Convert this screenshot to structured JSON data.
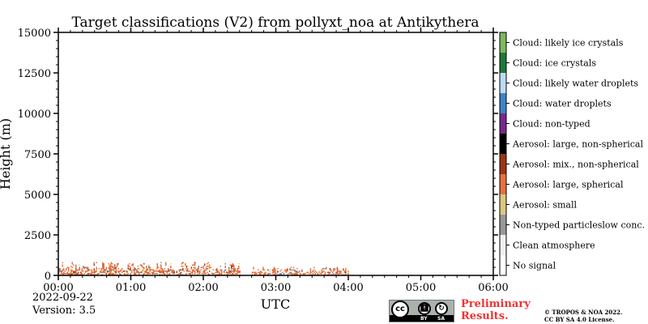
{
  "chart_data": {
    "type": "heatmap",
    "title": "Target classifications (V2) from pollyxt_noa at Antikythera",
    "xlabel": "UTC",
    "ylabel": "Height (m)",
    "x_range": [
      "00:00",
      "06:00"
    ],
    "ylim": [
      0,
      15000
    ],
    "x_ticks": [
      "00:00",
      "01:00",
      "02:00",
      "03:00",
      "04:00",
      "05:00",
      "06:00"
    ],
    "y_ticks": [
      0,
      2500,
      5000,
      7500,
      10000,
      12500,
      15000
    ],
    "grid": false,
    "colorbar": [
      {
        "label": "No signal",
        "color": "#ffffff"
      },
      {
        "label": "Clean atmosphere",
        "color": "#f0f0f0"
      },
      {
        "label": "Non-typed particleslow conc.",
        "color": "#999999"
      },
      {
        "label": "Aerosol: small",
        "color": "#ddc981"
      },
      {
        "label": "Aerosol: large, spherical",
        "color": "#e8713d"
      },
      {
        "label": "Aerosol: mix., non-spherical",
        "color": "#9c3515"
      },
      {
        "label": "Aerosol: large, non-spherical",
        "color": "#000000"
      },
      {
        "label": "Cloud: non-typed",
        "color": "#7a2a8a"
      },
      {
        "label": "Cloud: water droplets",
        "color": "#3f86c8"
      },
      {
        "label": "Cloud: likely water droplets",
        "color": "#bfdcf5"
      },
      {
        "label": "Cloud: ice crystals",
        "color": "#1e7a3a"
      },
      {
        "label": "Cloud: likely ice crystals",
        "color": "#7fb95f"
      }
    ],
    "observations": [
      {
        "start": "00:00",
        "end": "02:30",
        "layer_top_m": 900,
        "class": "Aerosol: large, spherical"
      },
      {
        "start": "02:40",
        "end": "04:00",
        "layer_top_m": 600,
        "class": "Aerosol: large, spherical"
      }
    ]
  },
  "date": "2022-09-22",
  "version": "Version: 3.5",
  "preliminary": [
    "Preliminary",
    "Results."
  ],
  "copyright": [
    "© TROPOS & NOA 2022.",
    "CC BY SA 4.0 License."
  ],
  "cc_badge": {
    "main": "cc",
    "by": "BY",
    "sa": "SA"
  }
}
